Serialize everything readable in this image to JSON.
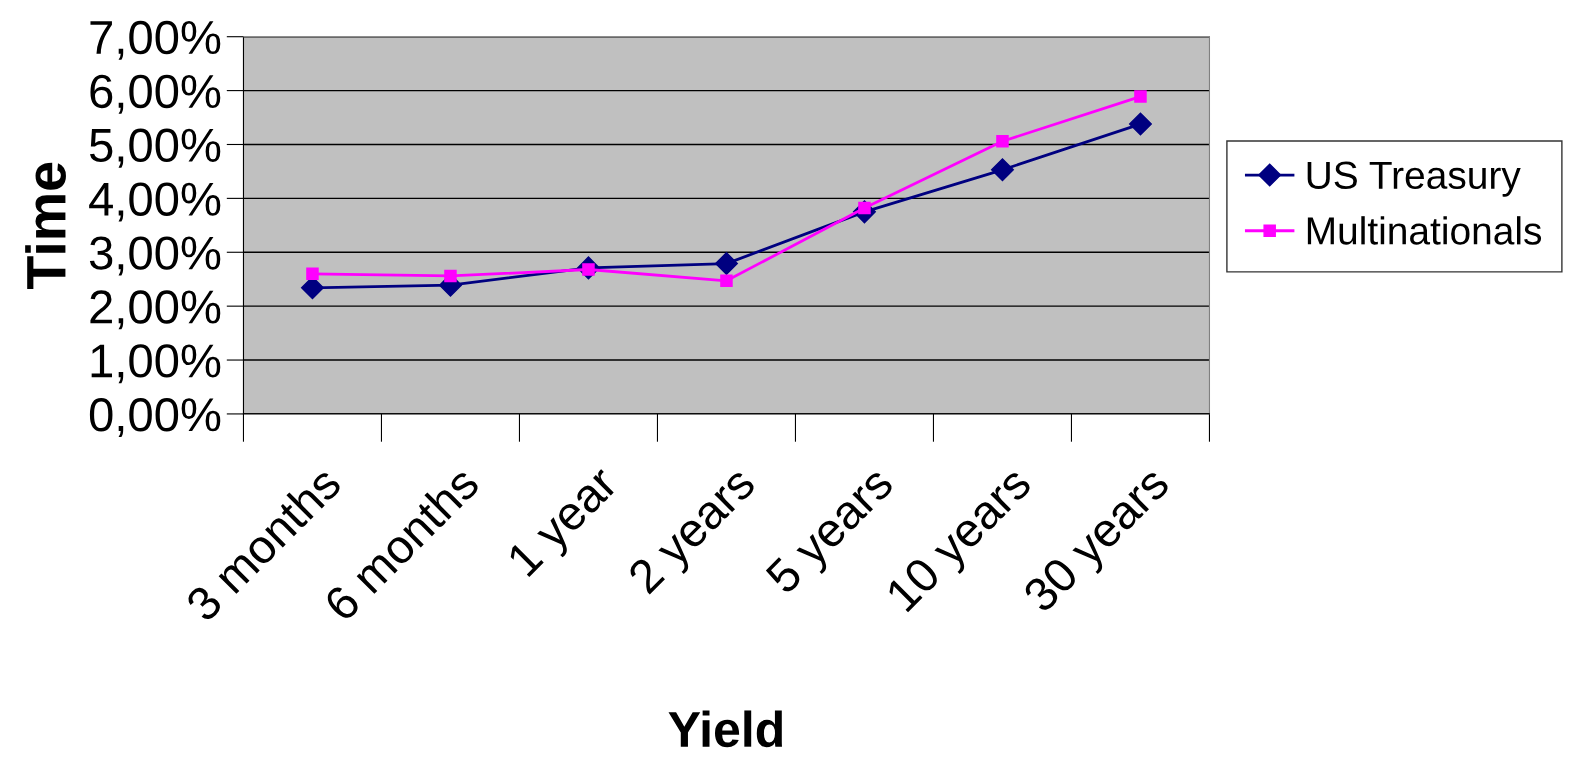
{
  "chart_data": {
    "type": "line",
    "xlabel": "Yield",
    "ylabel": "Time",
    "categories": [
      "3 months",
      "6 months",
      "1 year",
      "2 years",
      "5 years",
      "10 years",
      "30 years"
    ],
    "series": [
      {
        "name": "US Treasury",
        "color": "#000080",
        "marker": "diamond",
        "values": [
          2.34,
          2.39,
          2.71,
          2.79,
          3.75,
          4.53,
          5.38
        ]
      },
      {
        "name": "Multinationals",
        "color": "#ff00ff",
        "marker": "square",
        "values": [
          2.6,
          2.56,
          2.68,
          2.47,
          3.82,
          5.06,
          5.89
        ]
      }
    ],
    "ylim": [
      0,
      7
    ],
    "yticks": [
      {
        "value": 0,
        "label": "0,00%"
      },
      {
        "value": 1,
        "label": "1,00%"
      },
      {
        "value": 2,
        "label": "2,00%"
      },
      {
        "value": 3,
        "label": "3,00%"
      },
      {
        "value": 4,
        "label": "4,00%"
      },
      {
        "value": 5,
        "label": "5,00%"
      },
      {
        "value": 6,
        "label": "6,00%"
      },
      {
        "value": 7,
        "label": "7,00%"
      }
    ],
    "grid": "y",
    "legend": "right",
    "line_style": "solid"
  }
}
